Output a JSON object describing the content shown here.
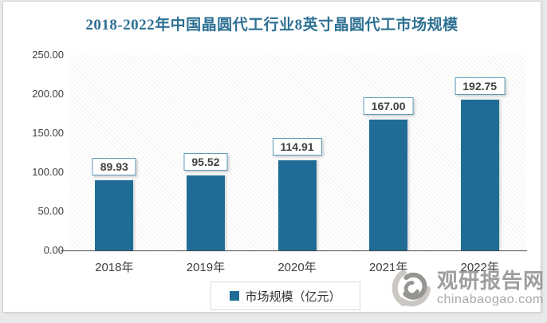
{
  "title": "2018-2022年中国晶圆代工行业8英寸晶圆代工市场规模",
  "chart_data": {
    "type": "bar",
    "title": "2018-2022年中国晶圆代工行业8英寸晶圆代工市场规模",
    "categories": [
      "2018年",
      "2019年",
      "2020年",
      "2021年",
      "2022年"
    ],
    "values": [
      89.93,
      95.52,
      114.91,
      167.0,
      192.75
    ],
    "data_labels": [
      "89.93",
      "95.52",
      "114.91",
      "167.00",
      "192.75"
    ],
    "series_name": "市场规模（亿元）",
    "xlabel": "",
    "ylabel": "",
    "ylim": [
      0,
      250
    ],
    "ytick_step": 50,
    "ytick_decimals": 2,
    "ytick_labels": [
      "0.00",
      "50.00",
      "100.00",
      "150.00",
      "200.00",
      "250.00"
    ],
    "grid": false,
    "legend_position": "bottom",
    "plot_background": "diagonal-hatch"
  },
  "legend": {
    "label": "市场规模（亿元）"
  },
  "watermark": {
    "logo_icon": "swirl-logo",
    "brand": "观研报告网",
    "domain": "chinabaogao.com"
  },
  "colors": {
    "bar": "#1F6D96",
    "title_text": "#2E7193",
    "data_label_text": "#404040",
    "data_label_border": "#5E9BBB",
    "axis_line": "#4a4a4a",
    "axis_text": "#3f3f3f",
    "legend_border": "#d9d9d9",
    "watermark_text": "#9b9998",
    "watermark_domain": "#a5a5a5"
  }
}
